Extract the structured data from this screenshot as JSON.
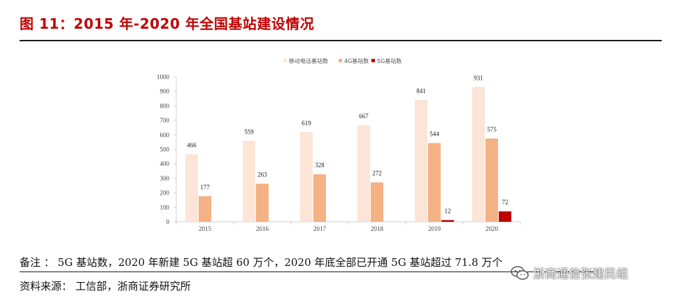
{
  "figure_title": "图 11：2015 年-2020 年全国基站建设情况",
  "note": "备注 ： 5G 基站数，2020 年新建 5G 基站超 60 万个，2020 年底全部已开通 5G 基站超过 71.8 万个",
  "source": "资料来源： 工信部，浙商证券研究所",
  "watermark": "浙商通信张建民组",
  "colors": {
    "title": "#c00000",
    "mobile": "#fce4d6",
    "g4": "#f4b183",
    "g5": "#c00000"
  },
  "chart_data": {
    "type": "bar",
    "categories": [
      "2015",
      "2016",
      "2017",
      "2018",
      "2019",
      "2020"
    ],
    "series": [
      {
        "name": "移动电话基站数",
        "values": [
          466,
          559,
          619,
          667,
          841,
          931
        ],
        "labels": [
          "466",
          "559",
          "619",
          "667",
          "841",
          "931"
        ]
      },
      {
        "name": "4G基站数",
        "values": [
          177,
          263,
          328,
          272,
          544,
          575
        ],
        "labels": [
          "177",
          "263",
          "328",
          "272",
          "544",
          "575"
        ]
      },
      {
        "name": "5G基站数",
        "values": [
          0,
          0,
          0,
          0,
          12,
          72
        ],
        "labels": [
          "",
          "",
          "",
          "",
          "12",
          "72"
        ]
      }
    ],
    "ylim": [
      0,
      1000
    ],
    "yticks": [
      "0",
      "100",
      "200",
      "300",
      "400",
      "500",
      "600",
      "700",
      "800",
      "900",
      "1000"
    ],
    "legend_position": "top-center",
    "grid": false
  }
}
